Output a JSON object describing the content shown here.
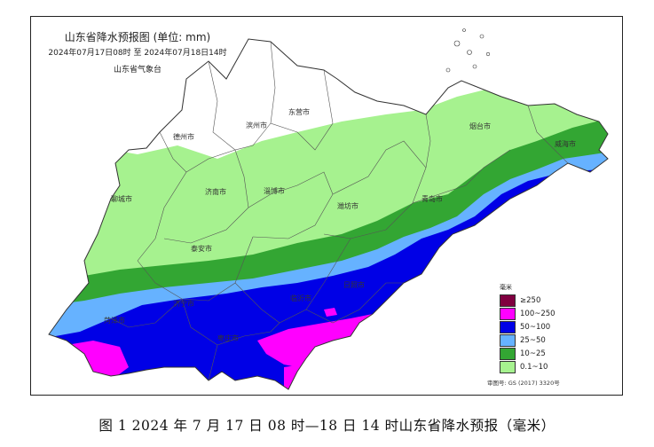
{
  "map": {
    "title": "山东省降水预报图 (单位: mm)",
    "time_range": "2024年07月17日08时 至 2024年07月18日14时",
    "issuer": "山东省气象台",
    "cities": [
      {
        "name": "东营市"
      },
      {
        "name": "滨州市"
      },
      {
        "name": "德州市"
      },
      {
        "name": "烟台市"
      },
      {
        "name": "威海市"
      },
      {
        "name": "聊城市"
      },
      {
        "name": "济南市"
      },
      {
        "name": "淄博市"
      },
      {
        "name": "潍坊市"
      },
      {
        "name": "青岛市"
      },
      {
        "name": "泰安市"
      },
      {
        "name": "日照市"
      },
      {
        "name": "临沂市"
      },
      {
        "name": "济宁市"
      },
      {
        "name": "菏泽市"
      },
      {
        "name": "枣庄市"
      }
    ],
    "legend": {
      "unit": "毫米",
      "items": [
        {
          "label": "≥250",
          "color": "#800040"
        },
        {
          "label": "100~250",
          "color": "#ff00ff"
        },
        {
          "label": "50~100",
          "color": "#0000e6"
        },
        {
          "label": "25~50",
          "color": "#66b2ff"
        },
        {
          "label": "10~25",
          "color": "#33a633"
        },
        {
          "label": "0.1~10",
          "color": "#a6f28f"
        }
      ]
    },
    "approval_number": "审图号: GS (2017) 3320号"
  },
  "caption": "图 1 2024 年 7 月 17 日 08 时—18 日 14 时山东省降水预报（毫米）"
}
